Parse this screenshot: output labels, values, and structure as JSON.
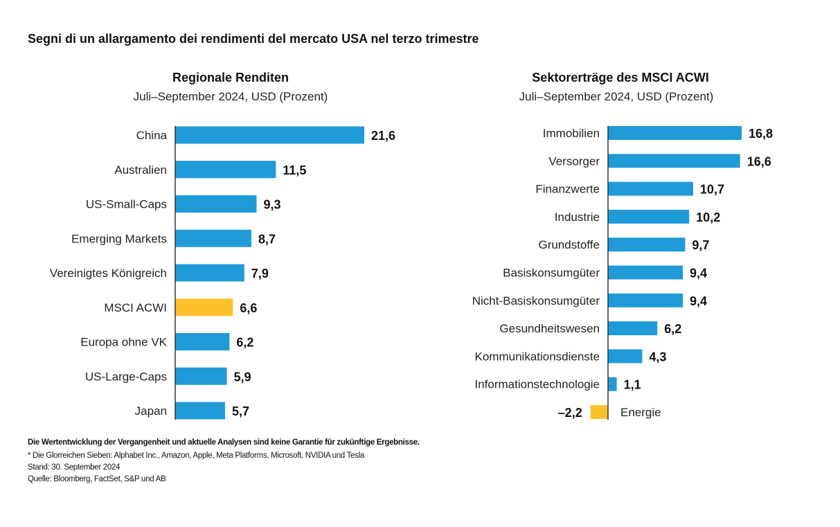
{
  "title": "Segni di un allargamento dei rendimenti del mercato USA nel terzo trimestre",
  "chart_data": [
    {
      "type": "bar",
      "orientation": "horizontal",
      "title": "Regionale Renditen",
      "subtitle": "Juli–September 2024, USD (Prozent)",
      "categories": [
        "China",
        "Australien",
        "US-Small-Caps",
        "Emerging Markets",
        "Vereinigtes Königreich",
        "MSCI ACWI",
        "Europa ohne VK",
        "US-Large-Caps",
        "Japan"
      ],
      "values": [
        21.6,
        11.5,
        9.3,
        8.7,
        7.9,
        6.6,
        6.2,
        5.9,
        5.7
      ],
      "labels": [
        "21,6",
        "11,5",
        "9,3",
        "8,7",
        "7,9",
        "6,6",
        "6,2",
        "5,9",
        "5,7"
      ],
      "highlight": [
        "MSCI ACWI"
      ]
    },
    {
      "type": "bar",
      "orientation": "horizontal",
      "title": "Sektorerträge des MSCI ACWI",
      "subtitle": "Juli–September 2024, USD (Prozent)",
      "categories": [
        "Immobilien",
        "Versorger",
        "Finanzwerte",
        "Industrie",
        "Grundstoffe",
        "Basiskonsumgüter",
        "Nicht-Basiskonsumgüter",
        "Gesundheitswesen",
        "Kommunikationsdienste",
        "Informationstechnologie",
        "Energie"
      ],
      "values": [
        16.8,
        16.6,
        10.7,
        10.2,
        9.7,
        9.4,
        9.4,
        6.2,
        4.3,
        1.1,
        -2.2
      ],
      "labels": [
        "16,8",
        "16,6",
        "10,7",
        "10,2",
        "9,7",
        "9,4",
        "9,4",
        "6,2",
        "4,3",
        "1,1",
        "–2,2"
      ],
      "highlight": [
        "Energie"
      ]
    }
  ],
  "colors": {
    "bar": "#1f9bd7",
    "highlight": "#fdc12b",
    "axis": "#333333",
    "text": "#111111"
  },
  "footer": {
    "disclaimer": "Die Wertentwicklung der Vergangenheit und aktuelle Analysen sind keine Garantie für zukünftige Ergebnisse.",
    "note": "* Die Glorreichen Sieben: Alphabet Inc., Amazon, Apple, Meta Platforms, Microsoft, NVIDIA und Tesla",
    "date": "Stand: 30. September 2024",
    "source": "Quelle: Bloomberg, FactSet, S&P und AB"
  }
}
